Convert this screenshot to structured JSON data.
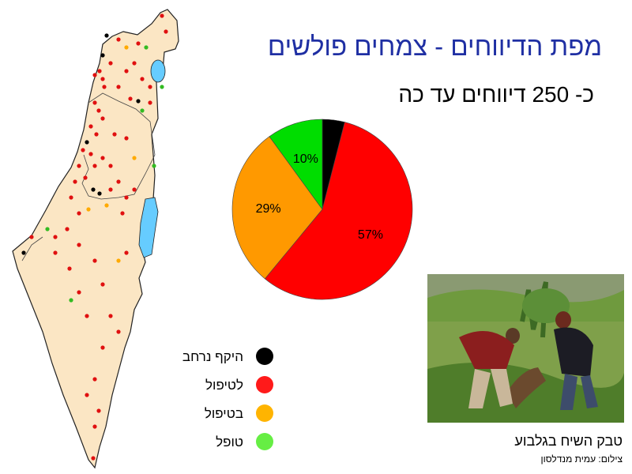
{
  "title": "מפת הדיווחים - צמחים פולשים",
  "subtitle": "כ- 250 דיווחים עד כה",
  "chart_data": {
    "type": "pie",
    "slices": [
      {
        "name": "היקף נרחב",
        "value": 4,
        "color": "#000000",
        "label": ""
      },
      {
        "name": "לטיפול",
        "value": 57,
        "color": "#ff0000",
        "label": "57%"
      },
      {
        "name": "בטיפול",
        "value": 29,
        "color": "#ff9900",
        "label": "29%"
      },
      {
        "name": "טופל",
        "value": 10,
        "color": "#00dd00",
        "label": "10%"
      }
    ]
  },
  "legend": [
    {
      "label": "היקף נרחב",
      "color": "#000000"
    },
    {
      "label": "לטיפול",
      "color": "#ff1a1a"
    },
    {
      "label": "בטיפול",
      "color": "#ffb400"
    },
    {
      "label": "טופל",
      "color": "#66ee44"
    }
  ],
  "photo": {
    "caption": "טבק השיח בגלבוע",
    "credit": "צילום: עמית מנדלסון"
  },
  "colors": {
    "title": "#1f2fa3",
    "land": "#fbe6c4",
    "water": "#66ccff"
  }
}
